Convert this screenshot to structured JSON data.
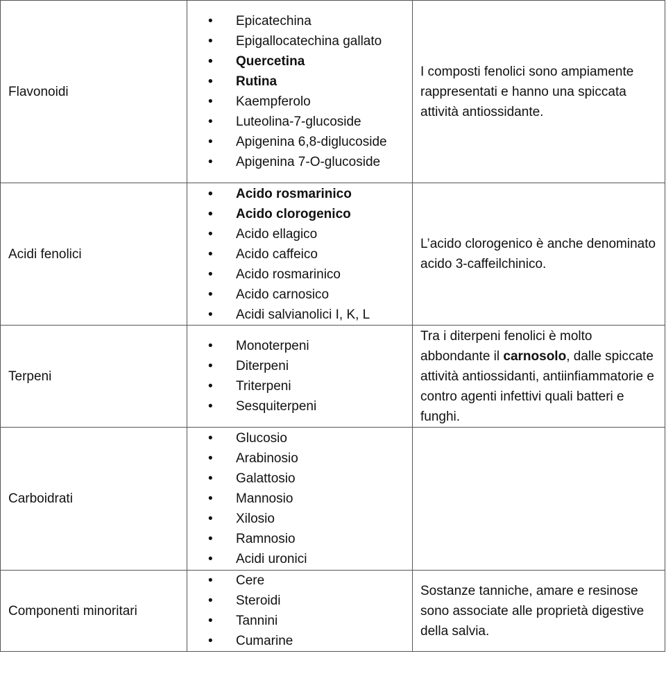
{
  "rows": [
    {
      "category": "Flavonoidi",
      "items": [
        {
          "text": "Epicatechina",
          "bold": false
        },
        {
          "text": "Epigallocatechina gallato",
          "bold": false
        },
        {
          "text": "Quercetina",
          "bold": true
        },
        {
          "text": "Rutina",
          "bold": true
        },
        {
          "text": "Kaempferolo",
          "bold": false
        },
        {
          "text": "Luteolina-7-glucoside",
          "bold": false
        },
        {
          "text": "Apigenina 6,8-diglucoside",
          "bold": false
        },
        {
          "text": "Apigenina 7-O-glucoside",
          "bold": false
        }
      ],
      "note": [
        {
          "text": "I composti fenolici sono ampiamente rappresentati e hanno una spiccata attività antiossidante.",
          "bold": false
        }
      ],
      "height": 263
    },
    {
      "category": "Acidi fenolici",
      "items": [
        {
          "text": "Acido rosmarinico",
          "bold": true
        },
        {
          "text": "Acido clorogenico",
          "bold": true
        },
        {
          "text": "Acido ellagico",
          "bold": false
        },
        {
          "text": "Acido caffeico",
          "bold": false
        },
        {
          "text": "Acido rosmarinico",
          "bold": false
        },
        {
          "text": "Acido carnosico",
          "bold": false
        },
        {
          "text": "Acidi salvianolici I, K, L",
          "bold": false
        }
      ],
      "note": [
        {
          "text": "L’acido clorogenico è anche denominato acido 3-caffeilchinico.",
          "bold": false
        }
      ],
      "height": 205
    },
    {
      "category": "Terpeni",
      "items": [
        {
          "text": "Monoterpeni",
          "bold": false
        },
        {
          "text": "Diterpeni",
          "bold": false
        },
        {
          "text": "Triterpeni",
          "bold": false
        },
        {
          "text": "Sesquiterpeni",
          "bold": false
        }
      ],
      "note": [
        {
          "text": "Tra i diterpeni fenolici è molto abbondante il ",
          "bold": false
        },
        {
          "text": "carnosolo",
          "bold": true
        },
        {
          "text": ", dalle spiccate attività antiossidanti, antiinfiammatorie e contro agenti infettivi quali batteri e funghi.",
          "bold": false
        }
      ],
      "height": 147
    },
    {
      "category": "Carboidrati",
      "items": [
        {
          "text": "Glucosio",
          "bold": false
        },
        {
          "text": "Arabinosio",
          "bold": false
        },
        {
          "text": "Galattosio",
          "bold": false
        },
        {
          "text": "Mannosio",
          "bold": false
        },
        {
          "text": "Xilosio",
          "bold": false
        },
        {
          "text": "Ramnosio",
          "bold": false
        },
        {
          "text": "Acidi uronici",
          "bold": false
        }
      ],
      "note": [],
      "height": 206
    },
    {
      "category": "Componenti minoritari",
      "items": [
        {
          "text": "Cere",
          "bold": false
        },
        {
          "text": "Steroidi",
          "bold": false
        },
        {
          "text": "Tannini",
          "bold": false
        },
        {
          "text": "Cumarine",
          "bold": false
        }
      ],
      "note": [
        {
          "text": "Sostanze tanniche, amare e resinose sono associate alle proprietà digestive della salvia.",
          "bold": false
        }
      ],
      "height": 117
    }
  ]
}
